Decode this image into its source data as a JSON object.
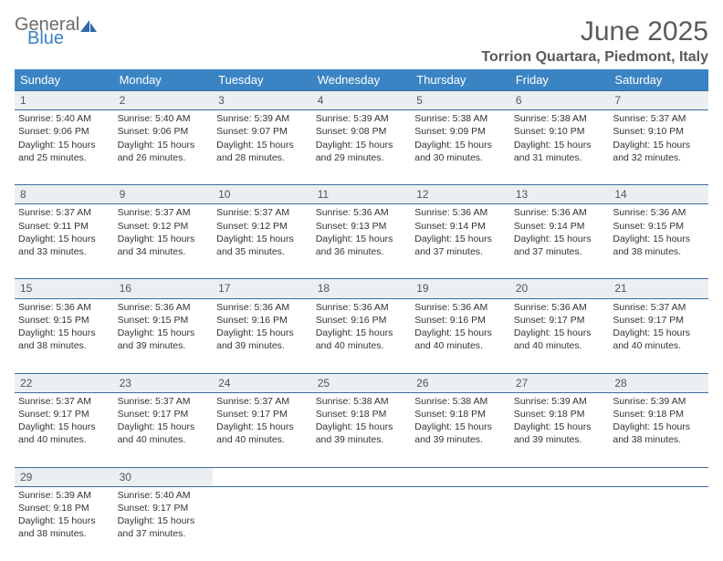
{
  "logo": {
    "line1": "General",
    "line2": "Blue"
  },
  "title": "June 2025",
  "location": "Torrion Quartara, Piedmont, Italy",
  "colors": {
    "header_bg": "#3b84c4",
    "header_text": "#ffffff",
    "daynum_bg": "#eceff1",
    "divider": "#3b6d9e",
    "text": "#333333",
    "logo_gray": "#6b6b6b",
    "logo_blue": "#3b82c4"
  },
  "weekdays": [
    "Sunday",
    "Monday",
    "Tuesday",
    "Wednesday",
    "Thursday",
    "Friday",
    "Saturday"
  ],
  "days": [
    {
      "n": 1,
      "sr": "5:40 AM",
      "ss": "9:06 PM",
      "dl": "15 hours and 25 minutes."
    },
    {
      "n": 2,
      "sr": "5:40 AM",
      "ss": "9:06 PM",
      "dl": "15 hours and 26 minutes."
    },
    {
      "n": 3,
      "sr": "5:39 AM",
      "ss": "9:07 PM",
      "dl": "15 hours and 28 minutes."
    },
    {
      "n": 4,
      "sr": "5:39 AM",
      "ss": "9:08 PM",
      "dl": "15 hours and 29 minutes."
    },
    {
      "n": 5,
      "sr": "5:38 AM",
      "ss": "9:09 PM",
      "dl": "15 hours and 30 minutes."
    },
    {
      "n": 6,
      "sr": "5:38 AM",
      "ss": "9:10 PM",
      "dl": "15 hours and 31 minutes."
    },
    {
      "n": 7,
      "sr": "5:37 AM",
      "ss": "9:10 PM",
      "dl": "15 hours and 32 minutes."
    },
    {
      "n": 8,
      "sr": "5:37 AM",
      "ss": "9:11 PM",
      "dl": "15 hours and 33 minutes."
    },
    {
      "n": 9,
      "sr": "5:37 AM",
      "ss": "9:12 PM",
      "dl": "15 hours and 34 minutes."
    },
    {
      "n": 10,
      "sr": "5:37 AM",
      "ss": "9:12 PM",
      "dl": "15 hours and 35 minutes."
    },
    {
      "n": 11,
      "sr": "5:36 AM",
      "ss": "9:13 PM",
      "dl": "15 hours and 36 minutes."
    },
    {
      "n": 12,
      "sr": "5:36 AM",
      "ss": "9:14 PM",
      "dl": "15 hours and 37 minutes."
    },
    {
      "n": 13,
      "sr": "5:36 AM",
      "ss": "9:14 PM",
      "dl": "15 hours and 37 minutes."
    },
    {
      "n": 14,
      "sr": "5:36 AM",
      "ss": "9:15 PM",
      "dl": "15 hours and 38 minutes."
    },
    {
      "n": 15,
      "sr": "5:36 AM",
      "ss": "9:15 PM",
      "dl": "15 hours and 38 minutes."
    },
    {
      "n": 16,
      "sr": "5:36 AM",
      "ss": "9:15 PM",
      "dl": "15 hours and 39 minutes."
    },
    {
      "n": 17,
      "sr": "5:36 AM",
      "ss": "9:16 PM",
      "dl": "15 hours and 39 minutes."
    },
    {
      "n": 18,
      "sr": "5:36 AM",
      "ss": "9:16 PM",
      "dl": "15 hours and 40 minutes."
    },
    {
      "n": 19,
      "sr": "5:36 AM",
      "ss": "9:16 PM",
      "dl": "15 hours and 40 minutes."
    },
    {
      "n": 20,
      "sr": "5:36 AM",
      "ss": "9:17 PM",
      "dl": "15 hours and 40 minutes."
    },
    {
      "n": 21,
      "sr": "5:37 AM",
      "ss": "9:17 PM",
      "dl": "15 hours and 40 minutes."
    },
    {
      "n": 22,
      "sr": "5:37 AM",
      "ss": "9:17 PM",
      "dl": "15 hours and 40 minutes."
    },
    {
      "n": 23,
      "sr": "5:37 AM",
      "ss": "9:17 PM",
      "dl": "15 hours and 40 minutes."
    },
    {
      "n": 24,
      "sr": "5:37 AM",
      "ss": "9:17 PM",
      "dl": "15 hours and 40 minutes."
    },
    {
      "n": 25,
      "sr": "5:38 AM",
      "ss": "9:18 PM",
      "dl": "15 hours and 39 minutes."
    },
    {
      "n": 26,
      "sr": "5:38 AM",
      "ss": "9:18 PM",
      "dl": "15 hours and 39 minutes."
    },
    {
      "n": 27,
      "sr": "5:39 AM",
      "ss": "9:18 PM",
      "dl": "15 hours and 39 minutes."
    },
    {
      "n": 28,
      "sr": "5:39 AM",
      "ss": "9:18 PM",
      "dl": "15 hours and 38 minutes."
    },
    {
      "n": 29,
      "sr": "5:39 AM",
      "ss": "9:18 PM",
      "dl": "15 hours and 38 minutes."
    },
    {
      "n": 30,
      "sr": "5:40 AM",
      "ss": "9:17 PM",
      "dl": "15 hours and 37 minutes."
    }
  ],
  "labels": {
    "sunrise": "Sunrise:",
    "sunset": "Sunset:",
    "daylight": "Daylight:"
  },
  "layout": {
    "start_weekday": 0,
    "rows": 5,
    "cols": 7
  }
}
